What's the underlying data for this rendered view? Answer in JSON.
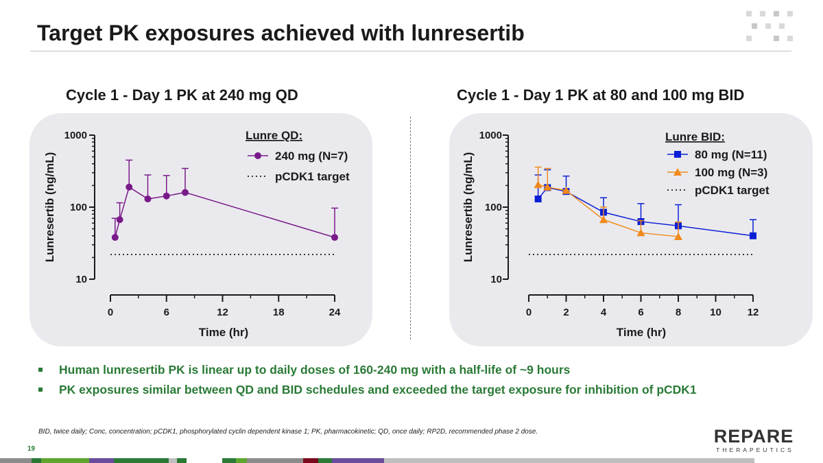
{
  "title": "Target PK exposures achieved with lunresertib",
  "colors": {
    "purple": "#7a1a8a",
    "blue": "#0b1fd6",
    "orange": "#f08a1c",
    "green": "#2a7a36",
    "panel": "#eaeaee"
  },
  "chart_data": [
    {
      "type": "line",
      "title": "Cycle 1 - Day 1 PK at 240 mg QD",
      "xlabel": "Time (hr)",
      "ylabel": "Lunresertib (ng/mL)",
      "yscale": "log",
      "ylim": [
        10,
        1000
      ],
      "yticks": [
        10,
        100,
        1000
      ],
      "ytick_labels": [
        "10",
        "100",
        "1000"
      ],
      "xlim": [
        0,
        24
      ],
      "xticks": [
        0,
        6,
        12,
        18,
        24
      ],
      "xtick_labels": [
        "0",
        "6",
        "12",
        "18",
        "24"
      ],
      "legend_title": "Lunre QD:",
      "series": [
        {
          "name": "240 mg (N=7)",
          "marker": "circle",
          "color": "#7a1a8a",
          "x": [
            0.5,
            1,
            2,
            4,
            6,
            8,
            24
          ],
          "y": [
            38,
            67,
            190,
            130,
            143,
            160,
            38
          ],
          "err_upper": [
            70,
            115,
            450,
            280,
            275,
            345,
            97
          ]
        }
      ],
      "reference_line": {
        "name": "pCDK1 target",
        "value": 22,
        "x_range": [
          0,
          24
        ]
      }
    },
    {
      "type": "line",
      "title": "Cycle 1 - Day 1 PK at 80 and 100 mg BID",
      "xlabel": "Time (hr)",
      "ylabel": "Lunresertib (ng/mL)",
      "yscale": "log",
      "ylim": [
        10,
        1000
      ],
      "yticks": [
        10,
        100,
        1000
      ],
      "ytick_labels": [
        "10",
        "100",
        "1000"
      ],
      "xlim": [
        0,
        12
      ],
      "xticks": [
        0,
        2,
        4,
        6,
        8,
        10,
        12
      ],
      "xtick_labels": [
        "0",
        "2",
        "4",
        "6",
        "8",
        "10",
        "12"
      ],
      "legend_title": "Lunre BID:",
      "series": [
        {
          "name": "80 mg (N=11)",
          "marker": "square",
          "color": "#0b1fd6",
          "x": [
            0.5,
            1,
            2,
            4,
            6,
            8,
            12
          ],
          "y": [
            130,
            187,
            165,
            85,
            63,
            55,
            40
          ],
          "err_upper": [
            280,
            330,
            270,
            135,
            112,
            108,
            67
          ]
        },
        {
          "name": "100 mg (N=3)",
          "marker": "triangle",
          "color": "#f08a1c",
          "x": [
            0.5,
            1,
            2,
            4,
            6,
            8
          ],
          "y": [
            205,
            190,
            170,
            67,
            44,
            39
          ],
          "err_upper": [
            360,
            345,
            170,
            100,
            65,
            62
          ]
        }
      ],
      "reference_line": {
        "name": "pCDK1 target",
        "value": 22,
        "x_range": [
          0,
          12
        ]
      }
    }
  ],
  "bullets": [
    "Human lunresertib PK is linear up to daily doses of 160-240 mg with a half-life of ~9 hours",
    "PK exposures similar between QD and BID schedules and exceeded the target exposure for inhibition of pCDK1"
  ],
  "footnote": "BID, twice daily; Conc, concentration; pCDK1, phosphorylated cyclin dependent kinase 1; PK, pharmacokinetic; QD, once daily; RP2D, recommended phase 2 dose.",
  "page_number": "19",
  "logo": {
    "word": "REPARE",
    "sub": "THERAPEUTICS"
  },
  "footer_bar_colors": [
    "#8c8c8c",
    "#2a7a36",
    "#5ea62e",
    "#6a4c9c",
    "#2a7a36",
    "#bfbfbf",
    "#2a7a36",
    "#ffffff",
    "#2a7a36",
    "#5ea62e",
    "#8c8c8c",
    "#7a0a1e",
    "#2a7a36",
    "#6a4c9c",
    "#bfbfbf"
  ]
}
